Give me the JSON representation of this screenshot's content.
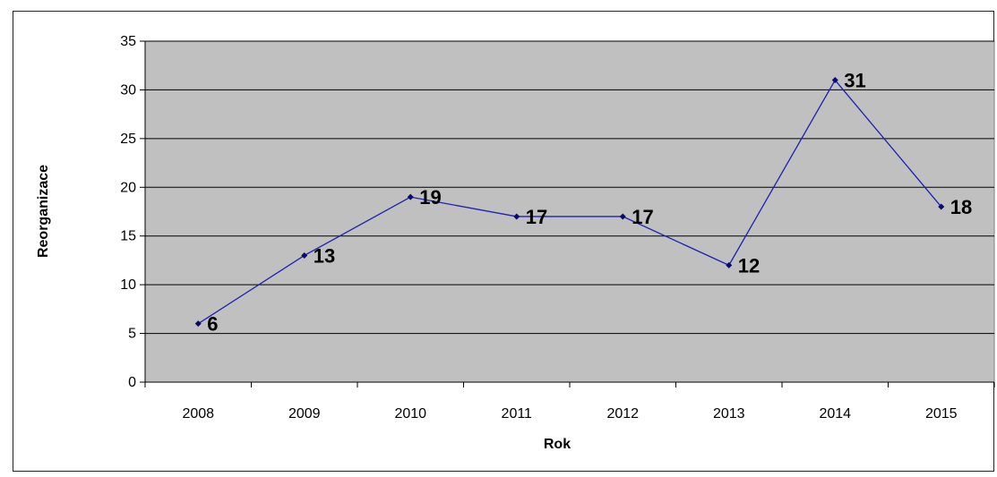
{
  "chart_data": {
    "type": "line",
    "title": "",
    "xlabel": "Rok",
    "ylabel": "Reorganizace",
    "categories": [
      "2008",
      "2009",
      "2010",
      "2011",
      "2012",
      "2013",
      "2014",
      "2015"
    ],
    "series": [
      {
        "values": [
          6,
          13,
          19,
          17,
          17,
          12,
          31,
          18
        ],
        "color": "#1f1fb4"
      }
    ],
    "ylim": [
      0,
      35
    ],
    "yticks": [
      0,
      5,
      10,
      15,
      20,
      25,
      30,
      35
    ],
    "grid": true,
    "plot_background": "#c0c0c0",
    "data_labels": true
  }
}
